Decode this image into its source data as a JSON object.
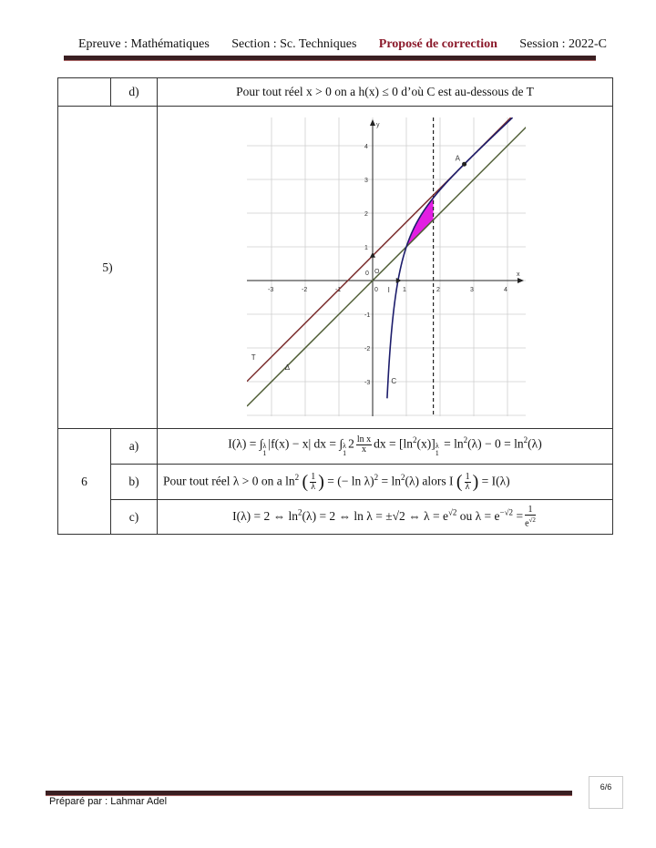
{
  "header": {
    "subject": "Epreuve : Mathématiques",
    "section": "Section : Sc. Techniques",
    "correction": "Proposé de correction",
    "session": "Session : 2022-C"
  },
  "row_d": {
    "label": "d)",
    "text": "Pour tout réel x > 0 on a h(x) ≤ 0 d’où C est au-dessous de T"
  },
  "row5": {
    "label": "5)",
    "graph": {
      "x_ticks": [
        "-3",
        "-2",
        "-1",
        "0",
        "1",
        "2",
        "3",
        "4"
      ],
      "y_ticks": [
        "-3",
        "-2",
        "-1",
        "1",
        "2",
        "3",
        "4"
      ],
      "axis_x": "x",
      "axis_y": "y",
      "origin": "0",
      "labels": {
        "C": "C",
        "T": "T",
        "delta": "Δ",
        "A": "A",
        "I": "I",
        "O": "O"
      },
      "colors": {
        "T": "#7a2c2c",
        "delta": "#4d5c33",
        "C": "#1c1c6b",
        "area": "#e21ee2",
        "grid": "#cfcfcf"
      }
    }
  },
  "row6": {
    "label": "6",
    "a": {
      "label": "a)",
      "p": [
        "I(λ) = ∫",
        "1",
        "λ",
        "|f(x) − x| dx = ∫",
        "1",
        "λ",
        "2",
        "ln x",
        "x",
        "dx = [ln",
        "2",
        "(x)]",
        "1",
        "λ",
        " = ln",
        "2",
        "(λ) − 0 = ln",
        "2",
        "(λ)"
      ]
    },
    "b": {
      "label": "b)",
      "p": [
        "Pour tout réel λ > 0 on a ln",
        "2",
        "1",
        "λ",
        "= (− ln λ)",
        "2",
        " = ln",
        "2",
        "(λ)  alors I",
        "1",
        "λ",
        "= I(λ)"
      ]
    },
    "c": {
      "label": "c)",
      "p": [
        "I(λ) = 2 ⇔ ln",
        "2",
        "(λ) = 2 ⇔ ln λ = ±√2 ⇔ λ = e",
        "√2",
        "  ou  λ = e",
        "−√2",
        " =",
        "1",
        "e",
        "√2"
      ]
    }
  },
  "footer": {
    "author": "Préparé par : Lahmar Adel",
    "page": "6/6"
  }
}
